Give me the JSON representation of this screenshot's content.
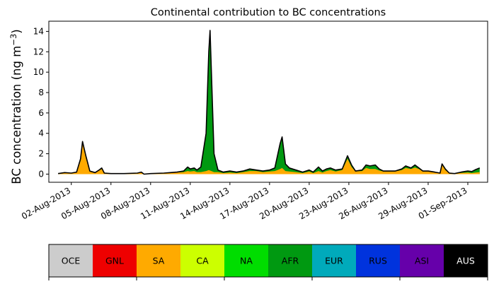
{
  "chart_data": {
    "type": "area",
    "title": "Continental contribution to BC concentrations",
    "ylabel_prefix": "BC concentration (ng m",
    "ylabel_sup": "−3",
    "ylabel_suffix": ")",
    "ylim": [
      -0.8,
      15
    ],
    "yticks": [
      0,
      2,
      4,
      6,
      8,
      10,
      12,
      14
    ],
    "xlim_days": [
      -0.7,
      32.5
    ],
    "x_ticks": [
      "02-Aug-2013",
      "05-Aug-2013",
      "08-Aug-2013",
      "11-Aug-2013",
      "14-Aug-2013",
      "17-Aug-2013",
      "20-Aug-2013",
      "23-Aug-2013",
      "26-Aug-2013",
      "29-Aug-2013",
      "01-Sep-2013"
    ],
    "x_start": "2013-08-01",
    "total_series": {
      "name": "total",
      "color": "#000000",
      "points": [
        [
          0,
          0.05
        ],
        [
          0.5,
          0.15
        ],
        [
          1.0,
          0.1
        ],
        [
          1.4,
          0.2
        ],
        [
          1.7,
          1.5
        ],
        [
          1.85,
          3.2
        ],
        [
          2.1,
          1.8
        ],
        [
          2.4,
          0.3
        ],
        [
          2.8,
          0.15
        ],
        [
          3.1,
          0.4
        ],
        [
          3.3,
          0.6
        ],
        [
          3.5,
          0.1
        ],
        [
          4.0,
          0.05
        ],
        [
          5.0,
          0.05
        ],
        [
          6.0,
          0.1
        ],
        [
          6.3,
          0.2
        ],
        [
          6.5,
          0.0
        ],
        [
          7.0,
          0.05
        ],
        [
          8.0,
          0.1
        ],
        [
          8.5,
          0.15
        ],
        [
          9.0,
          0.2
        ],
        [
          9.5,
          0.3
        ],
        [
          9.8,
          0.7
        ],
        [
          10.0,
          0.5
        ],
        [
          10.3,
          0.6
        ],
        [
          10.5,
          0.4
        ],
        [
          10.8,
          0.7
        ],
        [
          11.2,
          4.0
        ],
        [
          11.4,
          12.0
        ],
        [
          11.5,
          14.1
        ],
        [
          11.6,
          10.0
        ],
        [
          11.8,
          2.0
        ],
        [
          12.1,
          0.4
        ],
        [
          12.5,
          0.2
        ],
        [
          13.0,
          0.3
        ],
        [
          13.5,
          0.2
        ],
        [
          14.0,
          0.3
        ],
        [
          14.5,
          0.5
        ],
        [
          15.0,
          0.4
        ],
        [
          15.5,
          0.3
        ],
        [
          16.0,
          0.4
        ],
        [
          16.4,
          0.6
        ],
        [
          16.8,
          3.0
        ],
        [
          16.95,
          3.65
        ],
        [
          17.2,
          1.0
        ],
        [
          17.5,
          0.6
        ],
        [
          18.0,
          0.4
        ],
        [
          18.5,
          0.2
        ],
        [
          19.0,
          0.4
        ],
        [
          19.3,
          0.2
        ],
        [
          19.7,
          0.7
        ],
        [
          20.0,
          0.3
        ],
        [
          20.3,
          0.5
        ],
        [
          20.6,
          0.6
        ],
        [
          21.0,
          0.4
        ],
        [
          21.5,
          0.5
        ],
        [
          21.9,
          1.8
        ],
        [
          22.2,
          0.9
        ],
        [
          22.5,
          0.3
        ],
        [
          23.0,
          0.4
        ],
        [
          23.3,
          0.9
        ],
        [
          23.6,
          0.8
        ],
        [
          24.0,
          0.9
        ],
        [
          24.3,
          0.5
        ],
        [
          24.6,
          0.3
        ],
        [
          25.0,
          0.3
        ],
        [
          25.5,
          0.3
        ],
        [
          26.0,
          0.5
        ],
        [
          26.3,
          0.8
        ],
        [
          26.7,
          0.6
        ],
        [
          27.0,
          0.9
        ],
        [
          27.3,
          0.6
        ],
        [
          27.6,
          0.3
        ],
        [
          28.0,
          0.3
        ],
        [
          28.5,
          0.2
        ],
        [
          28.9,
          0.1
        ],
        [
          29.05,
          1.0
        ],
        [
          29.3,
          0.5
        ],
        [
          29.6,
          0.1
        ],
        [
          30.0,
          0.05
        ],
        [
          30.5,
          0.2
        ],
        [
          31.0,
          0.3
        ],
        [
          31.3,
          0.25
        ],
        [
          31.6,
          0.45
        ],
        [
          31.9,
          0.6
        ]
      ]
    },
    "sa_series": {
      "name": "SA",
      "color": "#ffaa00",
      "points": [
        [
          0,
          0.05
        ],
        [
          0.5,
          0.12
        ],
        [
          1.0,
          0.08
        ],
        [
          1.4,
          0.18
        ],
        [
          1.7,
          1.3
        ],
        [
          1.85,
          3.0
        ],
        [
          2.1,
          1.6
        ],
        [
          2.4,
          0.25
        ],
        [
          2.8,
          0.12
        ],
        [
          3.1,
          0.35
        ],
        [
          3.3,
          0.5
        ],
        [
          3.5,
          0.08
        ],
        [
          4.0,
          0.04
        ],
        [
          5.0,
          0.04
        ],
        [
          6.0,
          0.08
        ],
        [
          6.3,
          0.18
        ],
        [
          6.5,
          0.0
        ],
        [
          7.0,
          0.04
        ],
        [
          8.0,
          0.1
        ],
        [
          8.5,
          0.12
        ],
        [
          9.0,
          0.15
        ],
        [
          9.5,
          0.2
        ],
        [
          9.8,
          0.3
        ],
        [
          10.0,
          0.25
        ],
        [
          10.3,
          0.3
        ],
        [
          10.5,
          0.2
        ],
        [
          10.8,
          0.2
        ],
        [
          11.2,
          0.3
        ],
        [
          11.4,
          0.4
        ],
        [
          11.5,
          0.35
        ],
        [
          11.6,
          0.3
        ],
        [
          11.8,
          0.2
        ],
        [
          12.1,
          0.2
        ],
        [
          12.5,
          0.1
        ],
        [
          13.0,
          0.15
        ],
        [
          13.5,
          0.1
        ],
        [
          14.0,
          0.2
        ],
        [
          14.5,
          0.3
        ],
        [
          15.0,
          0.3
        ],
        [
          15.5,
          0.2
        ],
        [
          16.0,
          0.25
        ],
        [
          16.4,
          0.3
        ],
        [
          16.8,
          0.5
        ],
        [
          16.95,
          0.6
        ],
        [
          17.2,
          0.3
        ],
        [
          17.5,
          0.25
        ],
        [
          18.0,
          0.2
        ],
        [
          18.5,
          0.1
        ],
        [
          19.0,
          0.25
        ],
        [
          19.3,
          0.1
        ],
        [
          19.7,
          0.3
        ],
        [
          20.0,
          0.15
        ],
        [
          20.3,
          0.3
        ],
        [
          20.6,
          0.4
        ],
        [
          21.0,
          0.25
        ],
        [
          21.5,
          0.4
        ],
        [
          21.9,
          1.5
        ],
        [
          22.2,
          0.7
        ],
        [
          22.5,
          0.25
        ],
        [
          23.0,
          0.3
        ],
        [
          23.3,
          0.6
        ],
        [
          23.6,
          0.5
        ],
        [
          24.0,
          0.5
        ],
        [
          24.3,
          0.35
        ],
        [
          24.6,
          0.25
        ],
        [
          25.0,
          0.25
        ],
        [
          25.5,
          0.25
        ],
        [
          26.0,
          0.4
        ],
        [
          26.3,
          0.6
        ],
        [
          26.7,
          0.5
        ],
        [
          27.0,
          0.65
        ],
        [
          27.3,
          0.5
        ],
        [
          27.6,
          0.25
        ],
        [
          28.0,
          0.25
        ],
        [
          28.5,
          0.15
        ],
        [
          28.9,
          0.08
        ],
        [
          29.05,
          0.9
        ],
        [
          29.3,
          0.4
        ],
        [
          29.6,
          0.08
        ],
        [
          30.0,
          0.04
        ],
        [
          30.5,
          0.12
        ],
        [
          31.0,
          0.15
        ],
        [
          31.3,
          0.1
        ],
        [
          31.6,
          0.15
        ],
        [
          31.9,
          0.2
        ]
      ]
    }
  },
  "legend": [
    {
      "label": "OCE",
      "bg": "#cccccc",
      "fg": "#000000"
    },
    {
      "label": "GNL",
      "bg": "#ee0000",
      "fg": "#000000"
    },
    {
      "label": "SA",
      "bg": "#ffaa00",
      "fg": "#000000"
    },
    {
      "label": "CA",
      "bg": "#ccff00",
      "fg": "#000000"
    },
    {
      "label": "NA",
      "bg": "#00dd00",
      "fg": "#000000"
    },
    {
      "label": "AFR",
      "bg": "#009911",
      "fg": "#000000"
    },
    {
      "label": "EUR",
      "bg": "#00aabb",
      "fg": "#000000"
    },
    {
      "label": "RUS",
      "bg": "#0033dd",
      "fg": "#000000"
    },
    {
      "label": "ASI",
      "bg": "#6600aa",
      "fg": "#000000"
    },
    {
      "label": "AUS",
      "bg": "#000000",
      "fg": "#ffffff"
    }
  ],
  "colors": {
    "africa_fill": "#009911",
    "outline": "#000000"
  }
}
